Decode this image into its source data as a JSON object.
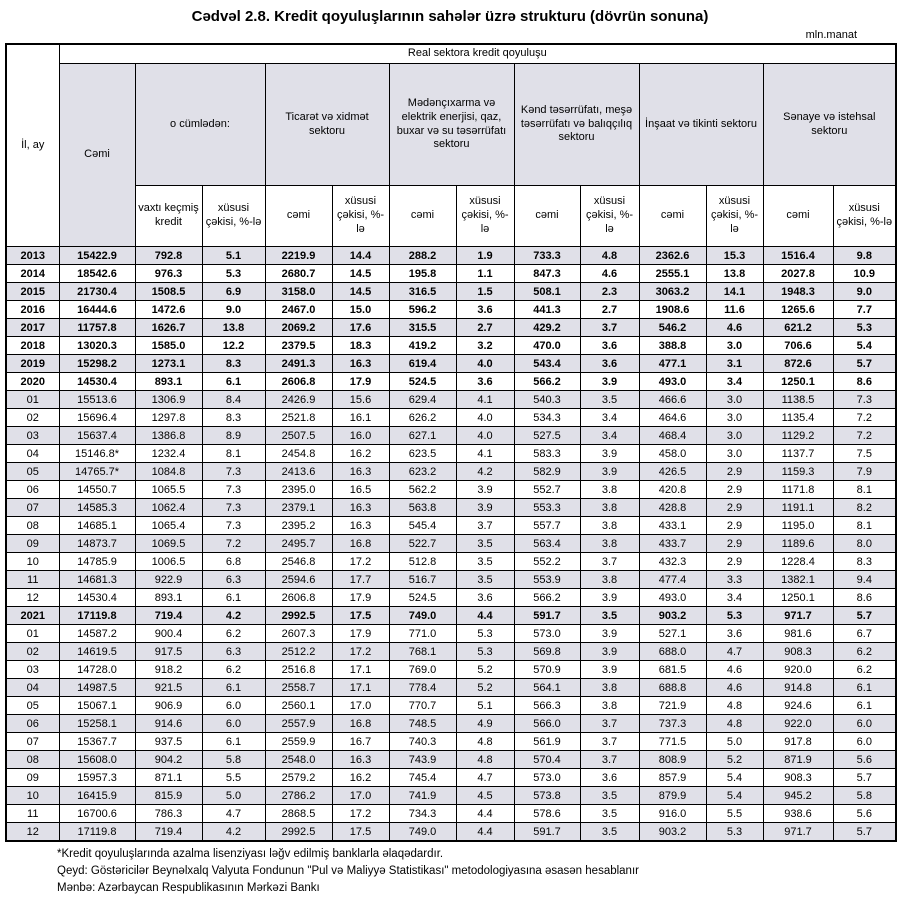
{
  "title": "Cədvəl 2.8. Kredit qoyuluşlarının sahələr üzrə strukturu (dövrün sonuna)",
  "unit_label": "mln.manat",
  "table": {
    "top_header": "Real sektora kredit qoyuluşu",
    "col_period": "İl, ay",
    "col_total": "Cəmi",
    "groups": [
      {
        "label": "o cümlədən:",
        "sub": [
          "vaxtı keçmiş kredit",
          "xüsusi çəkisi, %-lə"
        ]
      },
      {
        "label": "Ticarət və xidmət sektoru",
        "sub": [
          "cəmi",
          "xüsusi çəkisi, %-lə"
        ]
      },
      {
        "label": "Mədənçıxarma və elektrik enerjisi, qaz, buxar və su təsərrüfatı sektoru",
        "sub": [
          "cəmi",
          "xüsusi çəkisi, %-lə"
        ]
      },
      {
        "label": "Kənd təsərrüfatı, meşə təsərrüfatı və balıqçılıq sektoru",
        "sub": [
          "cəmi",
          "xüsusi çəkisi, %-lə"
        ]
      },
      {
        "label": "İnşaat və tikinti sektoru",
        "sub": [
          "cəmi",
          "xüsusi çəkisi, %-lə"
        ]
      },
      {
        "label": "Sənaye və istehsal sektoru",
        "sub": [
          "cəmi",
          "xüsusi çəkisi, %-lə"
        ]
      }
    ],
    "rows": [
      {
        "period": "2013",
        "bold": true,
        "values": [
          "15422.9",
          "792.8",
          "5.1",
          "2219.9",
          "14.4",
          "288.2",
          "1.9",
          "733.3",
          "4.8",
          "2362.6",
          "15.3",
          "1516.4",
          "9.8"
        ]
      },
      {
        "period": "2014",
        "bold": true,
        "values": [
          "18542.6",
          "976.3",
          "5.3",
          "2680.7",
          "14.5",
          "195.8",
          "1.1",
          "847.3",
          "4.6",
          "2555.1",
          "13.8",
          "2027.8",
          "10.9"
        ]
      },
      {
        "period": "2015",
        "bold": true,
        "values": [
          "21730.4",
          "1508.5",
          "6.9",
          "3158.0",
          "14.5",
          "316.5",
          "1.5",
          "508.1",
          "2.3",
          "3063.2",
          "14.1",
          "1948.3",
          "9.0"
        ]
      },
      {
        "period": "2016",
        "bold": true,
        "values": [
          "16444.6",
          "1472.6",
          "9.0",
          "2467.0",
          "15.0",
          "596.2",
          "3.6",
          "441.3",
          "2.7",
          "1908.6",
          "11.6",
          "1265.6",
          "7.7"
        ]
      },
      {
        "period": "2017",
        "bold": true,
        "values": [
          "11757.8",
          "1626.7",
          "13.8",
          "2069.2",
          "17.6",
          "315.5",
          "2.7",
          "429.2",
          "3.7",
          "546.2",
          "4.6",
          "621.2",
          "5.3"
        ]
      },
      {
        "period": "2018",
        "bold": true,
        "values": [
          "13020.3",
          "1585.0",
          "12.2",
          "2379.5",
          "18.3",
          "419.2",
          "3.2",
          "470.0",
          "3.6",
          "388.8",
          "3.0",
          "706.6",
          "5.4"
        ]
      },
      {
        "period": "2019",
        "bold": true,
        "values": [
          "15298.2",
          "1273.1",
          "8.3",
          "2491.3",
          "16.3",
          "619.4",
          "4.0",
          "543.4",
          "3.6",
          "477.1",
          "3.1",
          "872.6",
          "5.7"
        ]
      },
      {
        "period": "2020",
        "bold": true,
        "values": [
          "14530.4",
          "893.1",
          "6.1",
          "2606.8",
          "17.9",
          "524.5",
          "3.6",
          "566.2",
          "3.9",
          "493.0",
          "3.4",
          "1250.1",
          "8.6"
        ]
      },
      {
        "period": "01",
        "bold": false,
        "values": [
          "15513.6",
          "1306.9",
          "8.4",
          "2426.9",
          "15.6",
          "629.4",
          "4.1",
          "540.3",
          "3.5",
          "466.6",
          "3.0",
          "1138.5",
          "7.3"
        ]
      },
      {
        "period": "02",
        "bold": false,
        "values": [
          "15696.4",
          "1297.8",
          "8.3",
          "2521.8",
          "16.1",
          "626.2",
          "4.0",
          "534.3",
          "3.4",
          "464.6",
          "3.0",
          "1135.4",
          "7.2"
        ]
      },
      {
        "period": "03",
        "bold": false,
        "values": [
          "15637.4",
          "1386.8",
          "8.9",
          "2507.5",
          "16.0",
          "627.1",
          "4.0",
          "527.5",
          "3.4",
          "468.4",
          "3.0",
          "1129.2",
          "7.2"
        ]
      },
      {
        "period": "04",
        "bold": false,
        "values": [
          "15146.8*",
          "1232.4",
          "8.1",
          "2454.8",
          "16.2",
          "623.5",
          "4.1",
          "583.3",
          "3.9",
          "458.0",
          "3.0",
          "1137.7",
          "7.5"
        ]
      },
      {
        "period": "05",
        "bold": false,
        "values": [
          "14765.7*",
          "1084.8",
          "7.3",
          "2413.6",
          "16.3",
          "623.2",
          "4.2",
          "582.9",
          "3.9",
          "426.5",
          "2.9",
          "1159.3",
          "7.9"
        ]
      },
      {
        "period": "06",
        "bold": false,
        "values": [
          "14550.7",
          "1065.5",
          "7.3",
          "2395.0",
          "16.5",
          "562.2",
          "3.9",
          "552.7",
          "3.8",
          "420.8",
          "2.9",
          "1171.8",
          "8.1"
        ]
      },
      {
        "period": "07",
        "bold": false,
        "values": [
          "14585.3",
          "1062.4",
          "7.3",
          "2379.1",
          "16.3",
          "563.8",
          "3.9",
          "553.3",
          "3.8",
          "428.8",
          "2.9",
          "1191.1",
          "8.2"
        ]
      },
      {
        "period": "08",
        "bold": false,
        "values": [
          "14685.1",
          "1065.4",
          "7.3",
          "2395.2",
          "16.3",
          "545.4",
          "3.7",
          "557.7",
          "3.8",
          "433.1",
          "2.9",
          "1195.0",
          "8.1"
        ]
      },
      {
        "period": "09",
        "bold": false,
        "values": [
          "14873.7",
          "1069.5",
          "7.2",
          "2495.7",
          "16.8",
          "522.7",
          "3.5",
          "563.4",
          "3.8",
          "433.7",
          "2.9",
          "1189.6",
          "8.0"
        ]
      },
      {
        "period": "10",
        "bold": false,
        "values": [
          "14785.9",
          "1006.5",
          "6.8",
          "2546.8",
          "17.2",
          "512.8",
          "3.5",
          "552.2",
          "3.7",
          "432.3",
          "2.9",
          "1228.4",
          "8.3"
        ]
      },
      {
        "period": "11",
        "bold": false,
        "values": [
          "14681.3",
          "922.9",
          "6.3",
          "2594.6",
          "17.7",
          "516.7",
          "3.5",
          "553.9",
          "3.8",
          "477.4",
          "3.3",
          "1382.1",
          "9.4"
        ]
      },
      {
        "period": "12",
        "bold": false,
        "values": [
          "14530.4",
          "893.1",
          "6.1",
          "2606.8",
          "17.9",
          "524.5",
          "3.6",
          "566.2",
          "3.9",
          "493.0",
          "3.4",
          "1250.1",
          "8.6"
        ]
      },
      {
        "period": "2021",
        "bold": true,
        "values": [
          "17119.8",
          "719.4",
          "4.2",
          "2992.5",
          "17.5",
          "749.0",
          "4.4",
          "591.7",
          "3.5",
          "903.2",
          "5.3",
          "971.7",
          "5.7"
        ]
      },
      {
        "period": "01",
        "bold": false,
        "values": [
          "14587.2",
          "900.4",
          "6.2",
          "2607.3",
          "17.9",
          "771.0",
          "5.3",
          "573.0",
          "3.9",
          "527.1",
          "3.6",
          "981.6",
          "6.7"
        ]
      },
      {
        "period": "02",
        "bold": false,
        "values": [
          "14619.5",
          "917.5",
          "6.3",
          "2512.2",
          "17.2",
          "768.1",
          "5.3",
          "569.8",
          "3.9",
          "688.0",
          "4.7",
          "908.3",
          "6.2"
        ]
      },
      {
        "period": "03",
        "bold": false,
        "values": [
          "14728.0",
          "918.2",
          "6.2",
          "2516.8",
          "17.1",
          "769.0",
          "5.2",
          "570.9",
          "3.9",
          "681.5",
          "4.6",
          "920.0",
          "6.2"
        ]
      },
      {
        "period": "04",
        "bold": false,
        "values": [
          "14987.5",
          "921.5",
          "6.1",
          "2558.7",
          "17.1",
          "778.4",
          "5.2",
          "564.1",
          "3.8",
          "688.8",
          "4.6",
          "914.8",
          "6.1"
        ]
      },
      {
        "period": "05",
        "bold": false,
        "values": [
          "15067.1",
          "906.9",
          "6.0",
          "2560.1",
          "17.0",
          "770.7",
          "5.1",
          "566.3",
          "3.8",
          "721.9",
          "4.8",
          "924.6",
          "6.1"
        ]
      },
      {
        "period": "06",
        "bold": false,
        "values": [
          "15258.1",
          "914.6",
          "6.0",
          "2557.9",
          "16.8",
          "748.5",
          "4.9",
          "566.0",
          "3.7",
          "737.3",
          "4.8",
          "922.0",
          "6.0"
        ]
      },
      {
        "period": "07",
        "bold": false,
        "values": [
          "15367.7",
          "937.5",
          "6.1",
          "2559.9",
          "16.7",
          "740.3",
          "4.8",
          "561.9",
          "3.7",
          "771.5",
          "5.0",
          "917.8",
          "6.0"
        ]
      },
      {
        "period": "08",
        "bold": false,
        "values": [
          "15608.0",
          "904.2",
          "5.8",
          "2548.0",
          "16.3",
          "743.9",
          "4.8",
          "570.4",
          "3.7",
          "808.9",
          "5.2",
          "871.9",
          "5.6"
        ]
      },
      {
        "period": "09",
        "bold": false,
        "values": [
          "15957.3",
          "871.1",
          "5.5",
          "2579.2",
          "16.2",
          "745.4",
          "4.7",
          "573.0",
          "3.6",
          "857.9",
          "5.4",
          "908.3",
          "5.7"
        ]
      },
      {
        "period": "10",
        "bold": false,
        "values": [
          "16415.9",
          "815.9",
          "5.0",
          "2786.2",
          "17.0",
          "741.9",
          "4.5",
          "573.8",
          "3.5",
          "879.9",
          "5.4",
          "945.2",
          "5.8"
        ]
      },
      {
        "period": "11",
        "bold": false,
        "values": [
          "16700.6",
          "786.3",
          "4.7",
          "2868.5",
          "17.2",
          "734.3",
          "4.4",
          "578.6",
          "3.5",
          "916.0",
          "5.5",
          "938.6",
          "5.6"
        ]
      },
      {
        "period": "12",
        "bold": false,
        "values": [
          "17119.8",
          "719.4",
          "4.2",
          "2992.5",
          "17.5",
          "749.0",
          "4.4",
          "591.7",
          "3.5",
          "903.2",
          "5.3",
          "971.7",
          "5.7"
        ]
      }
    ]
  },
  "footnotes": [
    "*Kredit qoyuluşlarında azalma lisenziyası ləğv edilmiş banklarla əlaqədardır.",
    "Qeyd: Göstəricilər Beynəlxalq Valyuta Fondunun \"Pul və Maliyyə Statistikası\" metodologiyasına əsasən hesablanır",
    "Mənbə: Azərbaycan Respublikasının Mərkəzi Bankı"
  ]
}
